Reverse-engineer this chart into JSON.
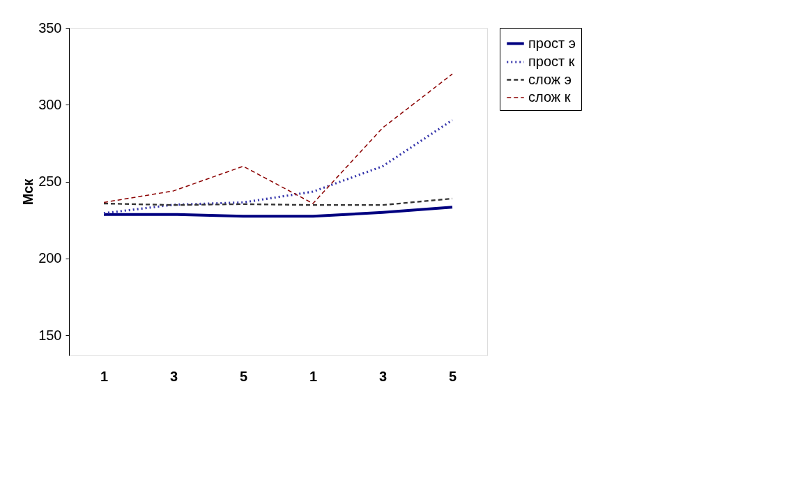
{
  "chart_data": {
    "type": "line",
    "ylabel": "Мск",
    "categories": [
      "1",
      "3",
      "5",
      "1",
      "3",
      "5"
    ],
    "ylim": [
      137,
      350
    ],
    "yticks": [
      150,
      200,
      250,
      300,
      350
    ],
    "grid": false,
    "legend": "right",
    "marker": "none",
    "series": [
      {
        "name": "прост э",
        "color": "#000080",
        "line_style": "solid",
        "values": [
          228.7,
          228.7,
          227.5,
          227.5,
          230,
          233.4
        ]
      },
      {
        "name": "прост к",
        "color": "#3333aa",
        "line_style": "dotted",
        "values": [
          229.5,
          235,
          236.5,
          243.5,
          260,
          290
        ]
      },
      {
        "name": "слож э",
        "color": "#333333",
        "line_style": "dashed",
        "values": [
          235.8,
          234.8,
          235.4,
          234.8,
          234.8,
          239
        ]
      },
      {
        "name": "слож к",
        "color": "#8b0000",
        "line_style": "dashed",
        "values": [
          236.5,
          244,
          260,
          235.8,
          285,
          320
        ]
      }
    ]
  }
}
